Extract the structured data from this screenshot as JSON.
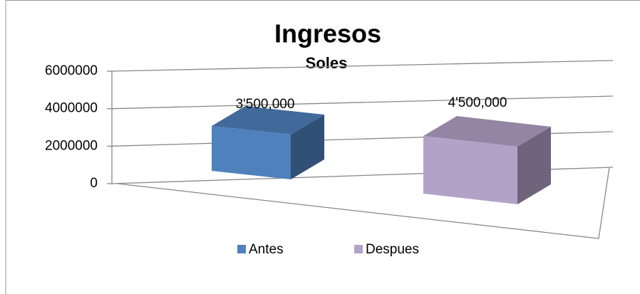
{
  "chart_data": {
    "type": "bar3d",
    "title": "Ingresos",
    "subtitle": "Soles",
    "categories": [
      null
    ],
    "series": [
      {
        "name": "Antes",
        "color": "#4f81bd",
        "values": [
          3500000
        ],
        "value_labels": [
          "3'500,000"
        ]
      },
      {
        "name": "Despues",
        "color": "#b3a2c7",
        "values": [
          4500000
        ],
        "value_labels": [
          "4'500,000"
        ]
      }
    ],
    "ylim": [
      0,
      6000000
    ],
    "yticks": [
      0,
      2000000,
      4000000,
      6000000
    ],
    "grid": true,
    "legend": "bottom"
  }
}
